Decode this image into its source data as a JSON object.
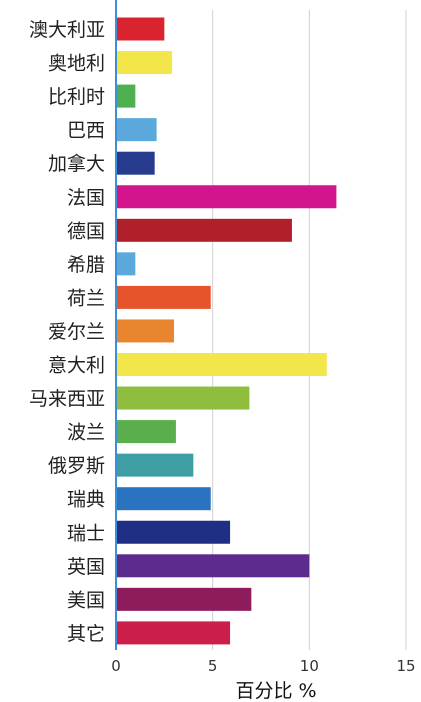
{
  "chart_data": {
    "type": "bar",
    "orientation": "horizontal",
    "xlabel": "百分比 %",
    "ylabel": "",
    "xlim": [
      0,
      15
    ],
    "xticks": [
      0,
      5,
      10,
      15
    ],
    "grid": true,
    "legend": "none",
    "categories": [
      "澳大利亚",
      "奥地利",
      "比利时",
      "巴西",
      "加拿大",
      "法国",
      "德国",
      "希腊",
      "荷兰",
      "爱尔兰",
      "意大利",
      "马来西亚",
      "波兰",
      "俄罗斯",
      "瑞典",
      "瑞士",
      "英国",
      "美国",
      "其它"
    ],
    "values": [
      2.5,
      2.9,
      1.0,
      2.1,
      2.0,
      11.4,
      9.1,
      1.0,
      4.9,
      3.0,
      10.9,
      6.9,
      3.1,
      4.0,
      4.9,
      5.9,
      10.0,
      7.0,
      5.9
    ],
    "colors": [
      "#d9232e",
      "#f2e64b",
      "#4caf50",
      "#5ba8dc",
      "#273c8e",
      "#d4148c",
      "#b0202a",
      "#5ba8dc",
      "#e5542a",
      "#e8852e",
      "#f2e64b",
      "#8fbd3e",
      "#5aaf4c",
      "#3f9ea3",
      "#2a73c0",
      "#1f2f86",
      "#5c2b8e",
      "#8e1c5c",
      "#cc1e4b"
    ]
  }
}
